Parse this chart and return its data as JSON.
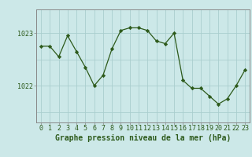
{
  "x": [
    0,
    1,
    2,
    3,
    4,
    5,
    6,
    7,
    8,
    9,
    10,
    11,
    12,
    13,
    14,
    15,
    16,
    17,
    18,
    19,
    20,
    21,
    22,
    23
  ],
  "y": [
    1022.75,
    1022.75,
    1022.55,
    1022.95,
    1022.65,
    1022.35,
    1022.0,
    1022.2,
    1022.7,
    1023.05,
    1023.1,
    1023.1,
    1023.05,
    1022.85,
    1022.8,
    1023.0,
    1022.1,
    1021.95,
    1021.95,
    1021.8,
    1021.65,
    1021.75,
    1022.0,
    1022.3
  ],
  "line_color": "#2d5a1b",
  "marker": "D",
  "marker_size": 2.2,
  "bg_color": "#cce8e8",
  "plot_bg_color": "#cce8e8",
  "grid_color": "#aacece",
  "ytick_vals": [
    1022.0,
    1023.0
  ],
  "xlabel_label": "Graphe pression niveau de la mer (hPa)",
  "xlim": [
    -0.5,
    23.5
  ],
  "ylim": [
    1021.3,
    1023.45
  ],
  "axis_color": "#888888",
  "label_fontsize": 6.8,
  "tick_fontsize": 6.0,
  "xlabel_fontsize": 7.0
}
